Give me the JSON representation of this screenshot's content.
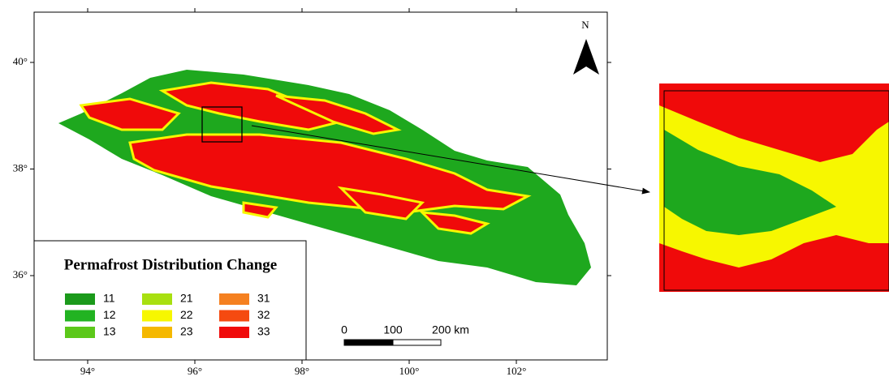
{
  "map": {
    "x_ticks": [
      "94°",
      "96°",
      "98°",
      "100°",
      "102°"
    ],
    "y_ticks": [
      "40°",
      "38°",
      "36°"
    ],
    "north": "N",
    "legend": {
      "title": "Permafrost Distribution Change",
      "items": [
        {
          "label": "11",
          "color": "#1b9a1b"
        },
        {
          "label": "12",
          "color": "#22b322"
        },
        {
          "label": "13",
          "color": "#5cc81a"
        },
        {
          "label": "21",
          "color": "#a8e010"
        },
        {
          "label": "22",
          "color": "#f7f700"
        },
        {
          "label": "23",
          "color": "#f5b800"
        },
        {
          "label": "31",
          "color": "#f58020"
        },
        {
          "label": "32",
          "color": "#f54a10"
        },
        {
          "label": "33",
          "color": "#f00a0a"
        }
      ]
    },
    "scale_bar": [
      "0",
      "100",
      "200 km"
    ]
  }
}
